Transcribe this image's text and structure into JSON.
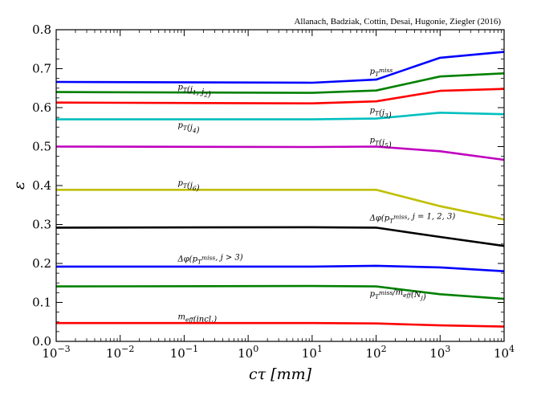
{
  "chart_data": {
    "type": "line",
    "title": "",
    "credit": "Allanach, Badziak, Cottin, Desai, Hugonie, Ziegler (2016)",
    "xlabel": "cτ [mm]",
    "ylabel": "ε",
    "xscale": "log",
    "xlim_exponents": [
      -3,
      4
    ],
    "ylim": [
      0.0,
      0.8
    ],
    "x_ticks": [
      {
        "exp": -3,
        "base": "10",
        "sup": "−3"
      },
      {
        "exp": -2,
        "base": "10",
        "sup": "−2"
      },
      {
        "exp": -1,
        "base": "10",
        "sup": "−1"
      },
      {
        "exp": 0,
        "base": "10",
        "sup": "0"
      },
      {
        "exp": 1,
        "base": "10",
        "sup": "1"
      },
      {
        "exp": 2,
        "base": "10",
        "sup": "2"
      },
      {
        "exp": 3,
        "base": "10",
        "sup": "3"
      },
      {
        "exp": 4,
        "base": "10",
        "sup": "4"
      }
    ],
    "y_ticks": [
      "0.0",
      "0.1",
      "0.2",
      "0.3",
      "0.4",
      "0.5",
      "0.6",
      "0.7",
      "0.8"
    ],
    "x_exponents": [
      -3,
      1,
      2,
      3,
      4
    ],
    "series": [
      {
        "name": "pT^miss",
        "label": "p_T^miss",
        "color": "#0000ff",
        "values": [
          0.666,
          0.664,
          0.672,
          0.728,
          0.743
        ],
        "label_anchor": {
          "exp": 1.9,
          "y": 0.687
        }
      },
      {
        "name": "pT(j1,j2)",
        "label": "p_T(j_1, j_2)",
        "color": "#008000",
        "values": [
          0.64,
          0.638,
          0.644,
          0.68,
          0.688
        ],
        "label_anchor": {
          "exp": -1.1,
          "y": 0.646
        }
      },
      {
        "name": "pT(j3)",
        "label": "p_T(j_3)",
        "color": "#ff0000",
        "values": [
          0.613,
          0.611,
          0.616,
          0.643,
          0.648
        ],
        "label_anchor": {
          "exp": 1.9,
          "y": 0.587
        }
      },
      {
        "name": "pT(j4)",
        "label": "p_T(j_4)",
        "color": "#00bfbf",
        "values": [
          0.57,
          0.57,
          0.572,
          0.587,
          0.583
        ],
        "label_anchor": {
          "exp": -1.1,
          "y": 0.548
        }
      },
      {
        "name": "pT(j5)",
        "label": "p_T(j_5)",
        "color": "#bf00bf",
        "values": [
          0.5,
          0.499,
          0.5,
          0.488,
          0.466
        ],
        "label_anchor": {
          "exp": 1.9,
          "y": 0.51
        }
      },
      {
        "name": "pT(j6)",
        "label": "p_T(j_6)",
        "color": "#bfbf00",
        "values": [
          0.389,
          0.389,
          0.389,
          0.347,
          0.313
        ],
        "label_anchor": {
          "exp": -1.1,
          "y": 0.4
        }
      },
      {
        "name": "Δφ(pT^miss, j=1,2,3)",
        "label": "Δφ(p_T^miss, j = 1, 2, 3)",
        "color": "#000000",
        "values": [
          0.292,
          0.293,
          0.292,
          0.268,
          0.245
        ],
        "label_anchor": {
          "exp": 1.9,
          "y": 0.31
        }
      },
      {
        "name": "Δφ(pT^miss, j>3)",
        "label": "Δφ(p_T^miss, j > 3)",
        "color": "#0000ff",
        "values": [
          0.192,
          0.192,
          0.194,
          0.19,
          0.18
        ],
        "label_anchor": {
          "exp": -1.1,
          "y": 0.205
        }
      },
      {
        "name": "pT^miss/meff(Nj)",
        "label": "p_T^miss/m_eff(N_j)",
        "color": "#008000",
        "values": [
          0.141,
          0.142,
          0.141,
          0.121,
          0.109
        ],
        "label_anchor": {
          "exp": 1.9,
          "y": 0.115
        }
      },
      {
        "name": "meff(incl.)",
        "label": "m_eff(incl.)",
        "color": "#ff0000",
        "values": [
          0.047,
          0.047,
          0.046,
          0.041,
          0.038
        ],
        "label_anchor": {
          "exp": -1.1,
          "y": 0.057
        }
      }
    ]
  }
}
